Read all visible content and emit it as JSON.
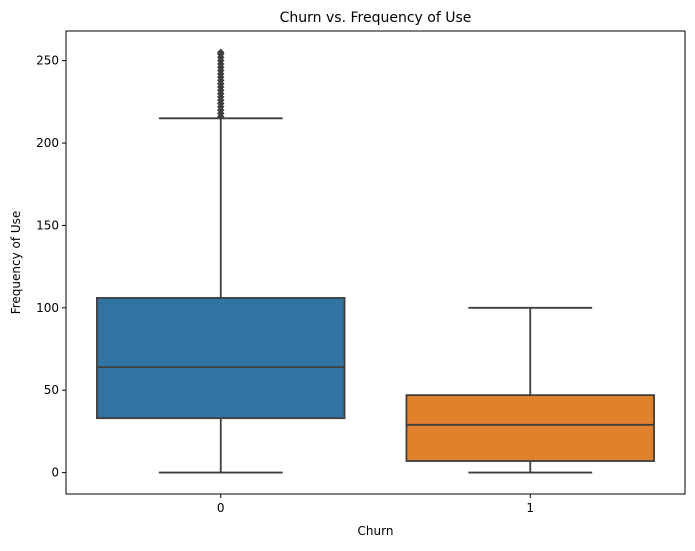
{
  "chart_data": {
    "type": "box",
    "title": "Churn vs. Frequency of Use",
    "xlabel": "Churn",
    "ylabel": "Frequency of Use",
    "categories": [
      "0",
      "1"
    ],
    "ylim": [
      -13,
      268
    ],
    "yticks": [
      0,
      50,
      100,
      150,
      200,
      250
    ],
    "grid": false,
    "legend": "none",
    "boxes": [
      {
        "category": "0",
        "min": 0,
        "q1": 33,
        "median": 64,
        "q3": 106,
        "max": 215,
        "outliers": [
          216,
          218,
          220,
          222,
          224,
          226,
          228,
          230,
          232,
          234,
          236,
          238,
          240,
          242,
          244,
          246,
          248,
          250,
          252,
          254,
          255
        ],
        "color": "#3274a1"
      },
      {
        "category": "1",
        "min": 0,
        "q1": 7,
        "median": 29,
        "q3": 47,
        "max": 100,
        "outliers": [],
        "color": "#e1812c"
      }
    ]
  }
}
